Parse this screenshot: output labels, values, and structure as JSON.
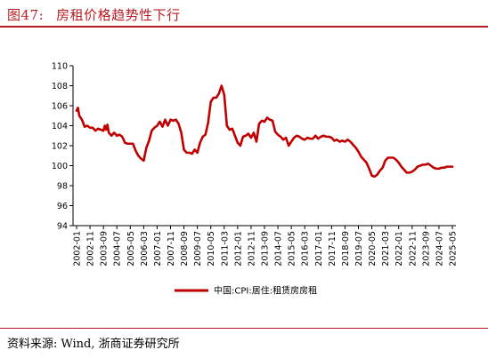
{
  "header": {
    "figure_number": "图47:",
    "title": "房租价格趋势性下行"
  },
  "source": {
    "label": "资料来源:",
    "text": "Wind, 浙商证券研究所"
  },
  "chart_data": {
    "type": "line",
    "ylim": [
      94,
      110
    ],
    "yticks": [
      94,
      96,
      98,
      100,
      102,
      104,
      106,
      108,
      110
    ],
    "x_range": [
      "2002-01",
      "2025-05"
    ],
    "xticks": [
      "2002-01",
      "2002-11",
      "2003-09",
      "2004-07",
      "2005-05",
      "2006-03",
      "2007-01",
      "2007-11",
      "2008-09",
      "2009-07",
      "2010-05",
      "2011-03",
      "2012-01",
      "2012-11",
      "2013-09",
      "2014-07",
      "2015-05",
      "2016-03",
      "2017-01",
      "2017-11",
      "2018-09",
      "2019-07",
      "2020-05",
      "2021-03",
      "2022-01",
      "2022-11",
      "2023-09",
      "2024-07",
      "2025-05"
    ],
    "grid": false,
    "legend_position": "bottom",
    "series": [
      {
        "name": "中国:CPI:居住:租赁房房租",
        "color": "#c00000",
        "points": [
          [
            "2002-01",
            105.5
          ],
          [
            "2002-02",
            105.8
          ],
          [
            "2002-03",
            105.0
          ],
          [
            "2002-05",
            104.6
          ],
          [
            "2002-07",
            103.9
          ],
          [
            "2002-09",
            104.0
          ],
          [
            "2002-11",
            103.8
          ],
          [
            "2003-01",
            103.8
          ],
          [
            "2003-03",
            103.5
          ],
          [
            "2003-05",
            103.7
          ],
          [
            "2003-07",
            103.6
          ],
          [
            "2003-09",
            103.5
          ],
          [
            "2003-10",
            104.0
          ],
          [
            "2003-11",
            103.6
          ],
          [
            "2003-12",
            104.1
          ],
          [
            "2004-01",
            103.3
          ],
          [
            "2004-03",
            103.0
          ],
          [
            "2004-05",
            103.3
          ],
          [
            "2004-07",
            103.0
          ],
          [
            "2004-09",
            103.1
          ],
          [
            "2004-11",
            102.9
          ],
          [
            "2005-01",
            102.3
          ],
          [
            "2005-03",
            102.2
          ],
          [
            "2005-05",
            102.2
          ],
          [
            "2005-07",
            102.2
          ],
          [
            "2005-09",
            101.5
          ],
          [
            "2005-11",
            101.0
          ],
          [
            "2006-01",
            100.7
          ],
          [
            "2006-03",
            100.5
          ],
          [
            "2006-05",
            101.8
          ],
          [
            "2006-07",
            102.5
          ],
          [
            "2006-09",
            103.5
          ],
          [
            "2006-11",
            103.8
          ],
          [
            "2007-01",
            104.0
          ],
          [
            "2007-03",
            104.4
          ],
          [
            "2007-05",
            103.9
          ],
          [
            "2007-07",
            104.6
          ],
          [
            "2007-09",
            104.0
          ],
          [
            "2007-11",
            104.6
          ],
          [
            "2008-01",
            104.5
          ],
          [
            "2008-03",
            104.6
          ],
          [
            "2008-05",
            104.2
          ],
          [
            "2008-07",
            103.3
          ],
          [
            "2008-09",
            101.6
          ],
          [
            "2008-11",
            101.3
          ],
          [
            "2009-01",
            101.3
          ],
          [
            "2009-03",
            101.2
          ],
          [
            "2009-05",
            101.6
          ],
          [
            "2009-07",
            101.3
          ],
          [
            "2009-09",
            102.3
          ],
          [
            "2009-11",
            102.9
          ],
          [
            "2010-01",
            103.1
          ],
          [
            "2010-03",
            104.3
          ],
          [
            "2010-05",
            106.4
          ],
          [
            "2010-07",
            106.8
          ],
          [
            "2010-09",
            106.8
          ],
          [
            "2010-11",
            107.2
          ],
          [
            "2011-01",
            108.0
          ],
          [
            "2011-03",
            107.1
          ],
          [
            "2011-05",
            104.0
          ],
          [
            "2011-07",
            103.6
          ],
          [
            "2011-09",
            103.7
          ],
          [
            "2011-11",
            103.0
          ],
          [
            "2012-01",
            102.3
          ],
          [
            "2012-03",
            102.0
          ],
          [
            "2012-05",
            102.9
          ],
          [
            "2012-07",
            103.0
          ],
          [
            "2012-09",
            103.2
          ],
          [
            "2012-11",
            102.8
          ],
          [
            "2013-01",
            103.3
          ],
          [
            "2013-03",
            102.4
          ],
          [
            "2013-05",
            104.2
          ],
          [
            "2013-07",
            104.5
          ],
          [
            "2013-09",
            104.4
          ],
          [
            "2013-11",
            104.8
          ],
          [
            "2014-01",
            104.6
          ],
          [
            "2014-03",
            104.5
          ],
          [
            "2014-05",
            103.4
          ],
          [
            "2014-07",
            103.1
          ],
          [
            "2014-09",
            102.9
          ],
          [
            "2014-11",
            102.6
          ],
          [
            "2015-01",
            102.8
          ],
          [
            "2015-03",
            102.0
          ],
          [
            "2015-05",
            102.4
          ],
          [
            "2015-07",
            102.8
          ],
          [
            "2015-09",
            103.0
          ],
          [
            "2015-11",
            102.9
          ],
          [
            "2016-01",
            102.7
          ],
          [
            "2016-03",
            102.6
          ],
          [
            "2016-05",
            102.8
          ],
          [
            "2016-07",
            102.7
          ],
          [
            "2016-09",
            102.7
          ],
          [
            "2016-11",
            103.0
          ],
          [
            "2017-01",
            102.7
          ],
          [
            "2017-03",
            102.9
          ],
          [
            "2017-05",
            103.0
          ],
          [
            "2017-07",
            102.9
          ],
          [
            "2017-09",
            102.9
          ],
          [
            "2017-11",
            102.8
          ],
          [
            "2018-01",
            102.5
          ],
          [
            "2018-03",
            102.6
          ],
          [
            "2018-05",
            102.4
          ],
          [
            "2018-07",
            102.5
          ],
          [
            "2018-09",
            102.4
          ],
          [
            "2018-11",
            102.6
          ],
          [
            "2019-01",
            102.4
          ],
          [
            "2019-03",
            102.1
          ],
          [
            "2019-05",
            101.8
          ],
          [
            "2019-07",
            101.4
          ],
          [
            "2019-09",
            100.9
          ],
          [
            "2019-11",
            100.6
          ],
          [
            "2020-01",
            100.3
          ],
          [
            "2020-03",
            99.7
          ],
          [
            "2020-05",
            99.0
          ],
          [
            "2020-07",
            98.9
          ],
          [
            "2020-09",
            99.1
          ],
          [
            "2020-11",
            99.5
          ],
          [
            "2021-01",
            99.8
          ],
          [
            "2021-03",
            100.5
          ],
          [
            "2021-05",
            100.8
          ],
          [
            "2021-07",
            100.8
          ],
          [
            "2021-09",
            100.8
          ],
          [
            "2021-11",
            100.6
          ],
          [
            "2022-01",
            100.3
          ],
          [
            "2022-03",
            99.9
          ],
          [
            "2022-05",
            99.6
          ],
          [
            "2022-07",
            99.3
          ],
          [
            "2022-09",
            99.3
          ],
          [
            "2022-11",
            99.4
          ],
          [
            "2023-01",
            99.6
          ],
          [
            "2023-03",
            99.9
          ],
          [
            "2023-05",
            100.0
          ],
          [
            "2023-07",
            100.1
          ],
          [
            "2023-09",
            100.1
          ],
          [
            "2023-11",
            100.2
          ],
          [
            "2024-01",
            100.0
          ],
          [
            "2024-03",
            99.8
          ],
          [
            "2024-05",
            99.7
          ],
          [
            "2024-07",
            99.7
          ],
          [
            "2024-09",
            99.8
          ],
          [
            "2024-11",
            99.8
          ],
          [
            "2025-01",
            99.9
          ],
          [
            "2025-03",
            99.9
          ],
          [
            "2025-05",
            99.9
          ]
        ]
      }
    ]
  }
}
